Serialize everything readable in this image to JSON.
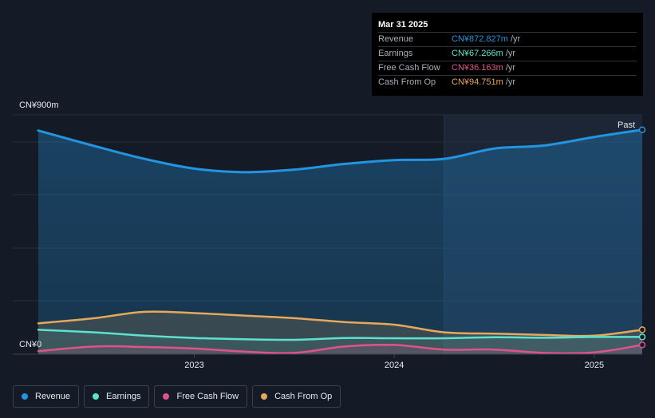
{
  "tooltip": {
    "date": "Mar 31 2025",
    "rows": [
      {
        "label": "Revenue",
        "value": "CN¥872.827m",
        "unit": "/yr",
        "color": "#2394df"
      },
      {
        "label": "Earnings",
        "value": "CN¥67.266m",
        "unit": "/yr",
        "color": "#5ce2cf"
      },
      {
        "label": "Free Cash Flow",
        "value": "CN¥36.163m",
        "unit": "/yr",
        "color": "#e0538a"
      },
      {
        "label": "Cash From Op",
        "value": "CN¥94.751m",
        "unit": "/yr",
        "color": "#e5a95a"
      }
    ]
  },
  "past_label": "Past",
  "legend": [
    {
      "label": "Revenue",
      "color": "#2394df"
    },
    {
      "label": "Earnings",
      "color": "#5ce2cf"
    },
    {
      "label": "Free Cash Flow",
      "color": "#e0538a"
    },
    {
      "label": "Cash From Op",
      "color": "#e5a95a"
    }
  ],
  "chart_data": {
    "type": "area",
    "x": [
      2022.22,
      2022.5,
      2022.75,
      2023.0,
      2023.25,
      2023.5,
      2023.75,
      2024.0,
      2024.25,
      2024.5,
      2024.75,
      2025.0,
      2025.24
    ],
    "xticks": [
      "2023",
      "2024",
      "2025"
    ],
    "xtick_values": [
      2023.0,
      2024.0,
      2025.0
    ],
    "ylim": [
      0,
      900
    ],
    "ytick_labels": {
      "top": "CN¥900m",
      "bottom": "CN¥0"
    },
    "series": [
      {
        "name": "Revenue",
        "color": "#2394df",
        "values": [
          870,
          810,
          760,
          722,
          708,
          718,
          740,
          755,
          760,
          800,
          812,
          845,
          873
        ]
      },
      {
        "name": "Earnings",
        "color": "#5ce2cf",
        "values": [
          95,
          85,
          72,
          63,
          58,
          56,
          63,
          62,
          62,
          66,
          64,
          67,
          67
        ]
      },
      {
        "name": "Free Cash Flow",
        "color": "#e0538a",
        "values": [
          12,
          30,
          28,
          22,
          10,
          5,
          30,
          36,
          18,
          18,
          5,
          7,
          36
        ]
      },
      {
        "name": "Cash From Op",
        "color": "#e5a95a",
        "values": [
          120,
          140,
          165,
          160,
          150,
          140,
          125,
          115,
          85,
          80,
          75,
          72,
          95
        ]
      }
    ],
    "forecast_start": 2024.25,
    "grid": true
  }
}
